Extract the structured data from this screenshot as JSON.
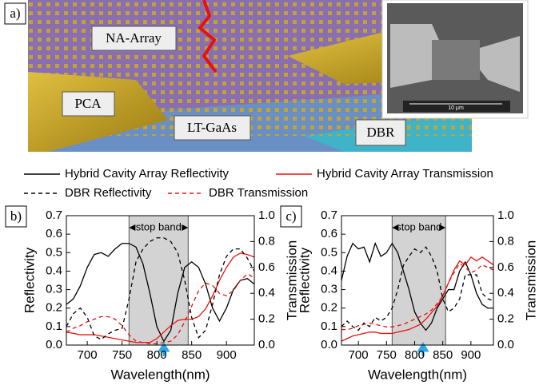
{
  "panel_a": {
    "label": "a)",
    "labels": [
      "NA-Array",
      "PCA",
      "LT-GaAs",
      "DBR"
    ],
    "scale_bar": "10 μm"
  },
  "chart_data": [
    {
      "type": "line",
      "panel_label": "b)",
      "xlabel": "Wavelength(nm)",
      "ylabel": "Reflectivity",
      "y2label": "Transmission",
      "annotation": "stop band",
      "stop_band": [
        760,
        845
      ],
      "arrow_x": 810,
      "xlim": [
        670,
        940
      ],
      "xticks": [
        700,
        750,
        800,
        850,
        900
      ],
      "ylim": [
        0,
        0.7
      ],
      "yticks": [
        {
          "value": 0,
          "label": "0.0"
        },
        0.1,
        0.2,
        0.3,
        0.4,
        0.5,
        0.6,
        0.7
      ],
      "y2lim": [
        0,
        1
      ],
      "y2ticks": [
        {
          "value": 0,
          "label": "0.0"
        },
        0.2,
        0.4,
        0.6,
        0.8,
        {
          "value": 1,
          "label": "1.0"
        }
      ],
      "x": [
        670,
        680,
        690,
        700,
        710,
        720,
        730,
        740,
        750,
        760,
        770,
        780,
        790,
        800,
        810,
        820,
        830,
        840,
        850,
        860,
        870,
        880,
        890,
        900,
        910,
        920,
        930,
        940
      ],
      "series": [
        {
          "name": "Hybrid Cavity Array Reflectivity",
          "color": "#000000",
          "dash": false,
          "values": [
            0.22,
            0.25,
            0.32,
            0.42,
            0.49,
            0.5,
            0.48,
            0.52,
            0.55,
            0.55,
            0.53,
            0.44,
            0.28,
            0.1,
            0.02,
            0.08,
            0.28,
            0.42,
            0.45,
            0.42,
            0.33,
            0.2,
            0.13,
            0.2,
            0.3,
            0.35,
            0.36,
            0.33
          ]
        },
        {
          "name": "Hybrid Cavity Array Transmission",
          "color": "#e8120c",
          "dash": false,
          "axis": "y2",
          "values": [
            0.1,
            0.09,
            0.08,
            0.08,
            0.08,
            0.07,
            0.06,
            0.05,
            0.04,
            0.03,
            0.02,
            0.02,
            0.02,
            0.05,
            0.1,
            0.15,
            0.19,
            0.2,
            0.2,
            0.22,
            0.28,
            0.38,
            0.5,
            0.6,
            0.68,
            0.71,
            0.7,
            0.68
          ]
        },
        {
          "name": "DBR Reflectivity",
          "color": "#000000",
          "dash": true,
          "values": [
            0.1,
            0.17,
            0.2,
            0.15,
            0.05,
            0.03,
            0.06,
            0.08,
            0.09,
            0.25,
            0.45,
            0.52,
            0.56,
            0.58,
            0.58,
            0.56,
            0.5,
            0.35,
            0.15,
            0.04,
            0.08,
            0.22,
            0.38,
            0.48,
            0.52,
            0.52,
            0.47,
            0.4
          ]
        },
        {
          "name": "DBR Transmission",
          "color": "#e8120c",
          "dash": true,
          "axis": "y2",
          "values": [
            0.1,
            0.13,
            0.15,
            0.18,
            0.2,
            0.22,
            0.22,
            0.2,
            0.15,
            0.08,
            0.03,
            0.02,
            0.01,
            0.01,
            0.02,
            0.03,
            0.08,
            0.18,
            0.3,
            0.42,
            0.48,
            0.46,
            0.4,
            0.38,
            0.42,
            0.5,
            0.55,
            0.52
          ]
        }
      ]
    },
    {
      "type": "line",
      "panel_label": "c)",
      "xlabel": "Wavelength(nm)",
      "ylabel": "Reflectivity",
      "y2label": "Transmission",
      "annotation": "stop band",
      "stop_band": [
        760,
        855
      ],
      "arrow_x": 815,
      "xlim": [
        670,
        940
      ],
      "xticks": [
        700,
        750,
        800,
        850,
        900
      ],
      "ylim": [
        0,
        0.7
      ],
      "yticks": [
        {
          "value": 0,
          "label": "0.0"
        },
        0.1,
        0.2,
        0.3,
        0.4,
        0.5,
        0.6,
        0.7
      ],
      "y2lim": [
        0,
        1
      ],
      "y2ticks": [
        {
          "value": 0,
          "label": "0.0"
        },
        0.2,
        0.4,
        0.6,
        0.8,
        {
          "value": 1,
          "label": "1.0"
        }
      ],
      "x": [
        670,
        680,
        690,
        700,
        710,
        720,
        730,
        740,
        750,
        760,
        770,
        780,
        790,
        800,
        810,
        820,
        830,
        840,
        850,
        860,
        870,
        880,
        890,
        900,
        910,
        920,
        930,
        940
      ],
      "series": [
        {
          "name": "Hybrid Cavity Array Reflectivity",
          "color": "#000000",
          "dash": false,
          "values": [
            0.35,
            0.48,
            0.55,
            0.52,
            0.53,
            0.45,
            0.55,
            0.48,
            0.5,
            0.55,
            0.5,
            0.4,
            0.3,
            0.18,
            0.12,
            0.08,
            0.12,
            0.2,
            0.25,
            0.3,
            0.3,
            0.4,
            0.45,
            0.38,
            0.28,
            0.22,
            0.2,
            0.2
          ]
        },
        {
          "name": "Hybrid Cavity Array Transmission",
          "color": "#e8120c",
          "dash": false,
          "axis": "y2",
          "values": [
            0.03,
            0.05,
            0.07,
            0.08,
            0.09,
            0.1,
            0.1,
            0.09,
            0.09,
            0.09,
            0.1,
            0.11,
            0.12,
            0.14,
            0.16,
            0.2,
            0.25,
            0.3,
            0.38,
            0.48,
            0.58,
            0.65,
            0.62,
            0.68,
            0.65,
            0.68,
            0.65,
            0.62
          ]
        },
        {
          "name": "DBR Reflectivity",
          "color": "#000000",
          "dash": true,
          "values": [
            0.1,
            0.13,
            0.1,
            0.08,
            0.12,
            0.1,
            0.15,
            0.13,
            0.15,
            0.2,
            0.3,
            0.43,
            0.48,
            0.52,
            0.5,
            0.53,
            0.48,
            0.4,
            0.25,
            0.18,
            0.2,
            0.25,
            0.38,
            0.38,
            0.38,
            0.28,
            0.25,
            0.24
          ]
        },
        {
          "name": "DBR Transmission",
          "color": "#e8120c",
          "dash": true,
          "axis": "y2",
          "values": [
            0.12,
            0.12,
            0.13,
            0.15,
            0.16,
            0.17,
            0.16,
            0.15,
            0.14,
            0.14,
            0.15,
            0.16,
            0.18,
            0.2,
            0.22,
            0.24,
            0.27,
            0.32,
            0.38,
            0.48,
            0.56,
            0.63,
            0.6,
            0.56,
            0.58,
            0.62,
            0.6,
            0.58
          ]
        }
      ]
    }
  ]
}
